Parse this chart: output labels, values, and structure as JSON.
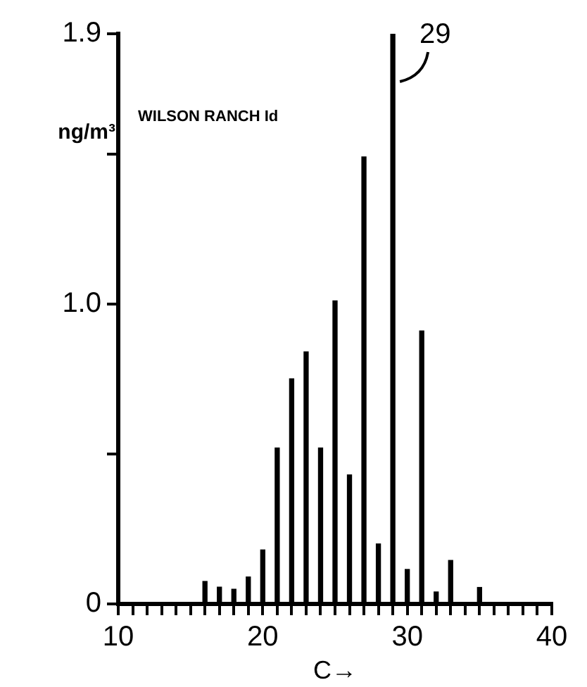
{
  "chart_data": {
    "type": "bar",
    "ylabel": "ng/m³",
    "xlabel": "C→",
    "annotations": [
      "WILSON RANCH Id",
      {
        "text": "29",
        "x": 29,
        "y": 1.9
      }
    ],
    "x": [
      16,
      17,
      18,
      19,
      20,
      21,
      22,
      23,
      24,
      25,
      26,
      27,
      28,
      29,
      30,
      31,
      32,
      33,
      35
    ],
    "values": [
      0.075,
      0.056,
      0.049,
      0.09,
      0.18,
      0.52,
      0.75,
      0.84,
      0.52,
      1.01,
      0.43,
      1.49,
      0.2,
      1.9,
      0.115,
      0.91,
      0.04,
      0.145,
      0.055
    ],
    "color": "#000000",
    "xlim": [
      10,
      40
    ],
    "xticks": [
      10,
      {
        "value": 11,
        "label": null
      },
      {
        "value": 12,
        "label": null
      },
      {
        "value": 13,
        "label": null
      },
      {
        "value": 14,
        "label": null
      },
      {
        "value": 15,
        "label": null
      },
      {
        "value": 16,
        "label": null
      },
      {
        "value": 17,
        "label": null
      },
      {
        "value": 18,
        "label": null
      },
      {
        "value": 19,
        "label": null
      },
      20,
      {
        "value": 21,
        "label": null
      },
      {
        "value": 22,
        "label": null
      },
      {
        "value": 23,
        "label": null
      },
      {
        "value": 24,
        "label": null
      },
      {
        "value": 25,
        "label": null
      },
      {
        "value": 26,
        "label": null
      },
      {
        "value": 27,
        "label": null
      },
      {
        "value": 28,
        "label": null
      },
      {
        "value": 29,
        "label": null
      },
      30,
      {
        "value": 31,
        "label": null
      },
      {
        "value": 32,
        "label": null
      },
      {
        "value": 33,
        "label": null
      },
      {
        "value": 34,
        "label": null
      },
      {
        "value": 35,
        "label": null
      },
      {
        "value": 36,
        "label": null
      },
      {
        "value": 37,
        "label": null
      },
      {
        "value": 38,
        "label": null
      },
      {
        "value": 39,
        "label": null
      },
      40
    ],
    "ylim": [
      0,
      1.9
    ],
    "yticks": [
      0,
      {
        "value": 0.5,
        "label": null
      },
      {
        "value": 1,
        "label": "1.0"
      },
      {
        "value": 1.5,
        "label": null
      },
      1.9
    ],
    "grid": false,
    "legend": false
  }
}
